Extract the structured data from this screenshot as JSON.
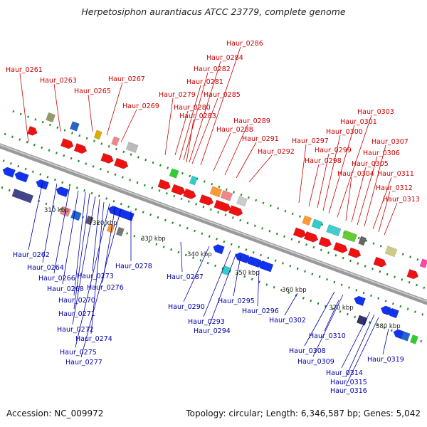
{
  "title": "Herpetosiphon aurantiacus ATCC 23779, complete genome",
  "footer": {
    "accession": "Accession: NC_009972",
    "summary": "Topology: circular; Length: 6,346,587 bp; Genes: 5,042"
  },
  "colors": {
    "forward_label": "#cc0000",
    "reverse_label": "#0000aa",
    "forward_gene": "#ee1111",
    "reverse_gene": "#1133ee",
    "backbone": "#888888",
    "kbp_tick": "#228822"
  },
  "kbp_ticks": [
    "310 kbp",
    "320 kbp",
    "330 kbp",
    "340 kbp",
    "350 kbp",
    "360 kbp",
    "370 kbp",
    "380 kbp"
  ],
  "forward_labels": [
    "Haur_0261",
    "Haur_0263",
    "Haur_0265",
    "Haur_0267",
    "Haur_0269",
    "Haur_0279",
    "Haur_0280",
    "Haur_0281",
    "Haur_0282",
    "Haur_0283",
    "Haur_0284",
    "Haur_0285",
    "Haur_0286",
    "Haur_0288",
    "Haur_0289",
    "Haur_0291",
    "Haur_0292",
    "Haur_0297",
    "Haur_0298",
    "Haur_0299",
    "Haur_0300",
    "Haur_0301",
    "Haur_0303",
    "Haur_0304",
    "Haur_0305",
    "Haur_0306",
    "Haur_0307",
    "Haur_0311",
    "Haur_0312",
    "Haur_0313"
  ],
  "reverse_labels": [
    "Haur_0262",
    "Haur_0264",
    "Haur_0266",
    "Haur_0268",
    "Haur_0270",
    "Haur_0271",
    "Haur_0272",
    "Haur_0273",
    "Haur_0274",
    "Haur_0275",
    "Haur_0276",
    "Haur_0277",
    "Haur_0278",
    "Haur_0287",
    "Haur_0290",
    "Haur_0293",
    "Haur_0294",
    "Haur_0295",
    "Haur_0296",
    "Haur_0302",
    "Haur_0308",
    "Haur_0309",
    "Haur_0310",
    "Haur_0314",
    "Haur_0315",
    "Haur_0316",
    "Haur_0319"
  ]
}
